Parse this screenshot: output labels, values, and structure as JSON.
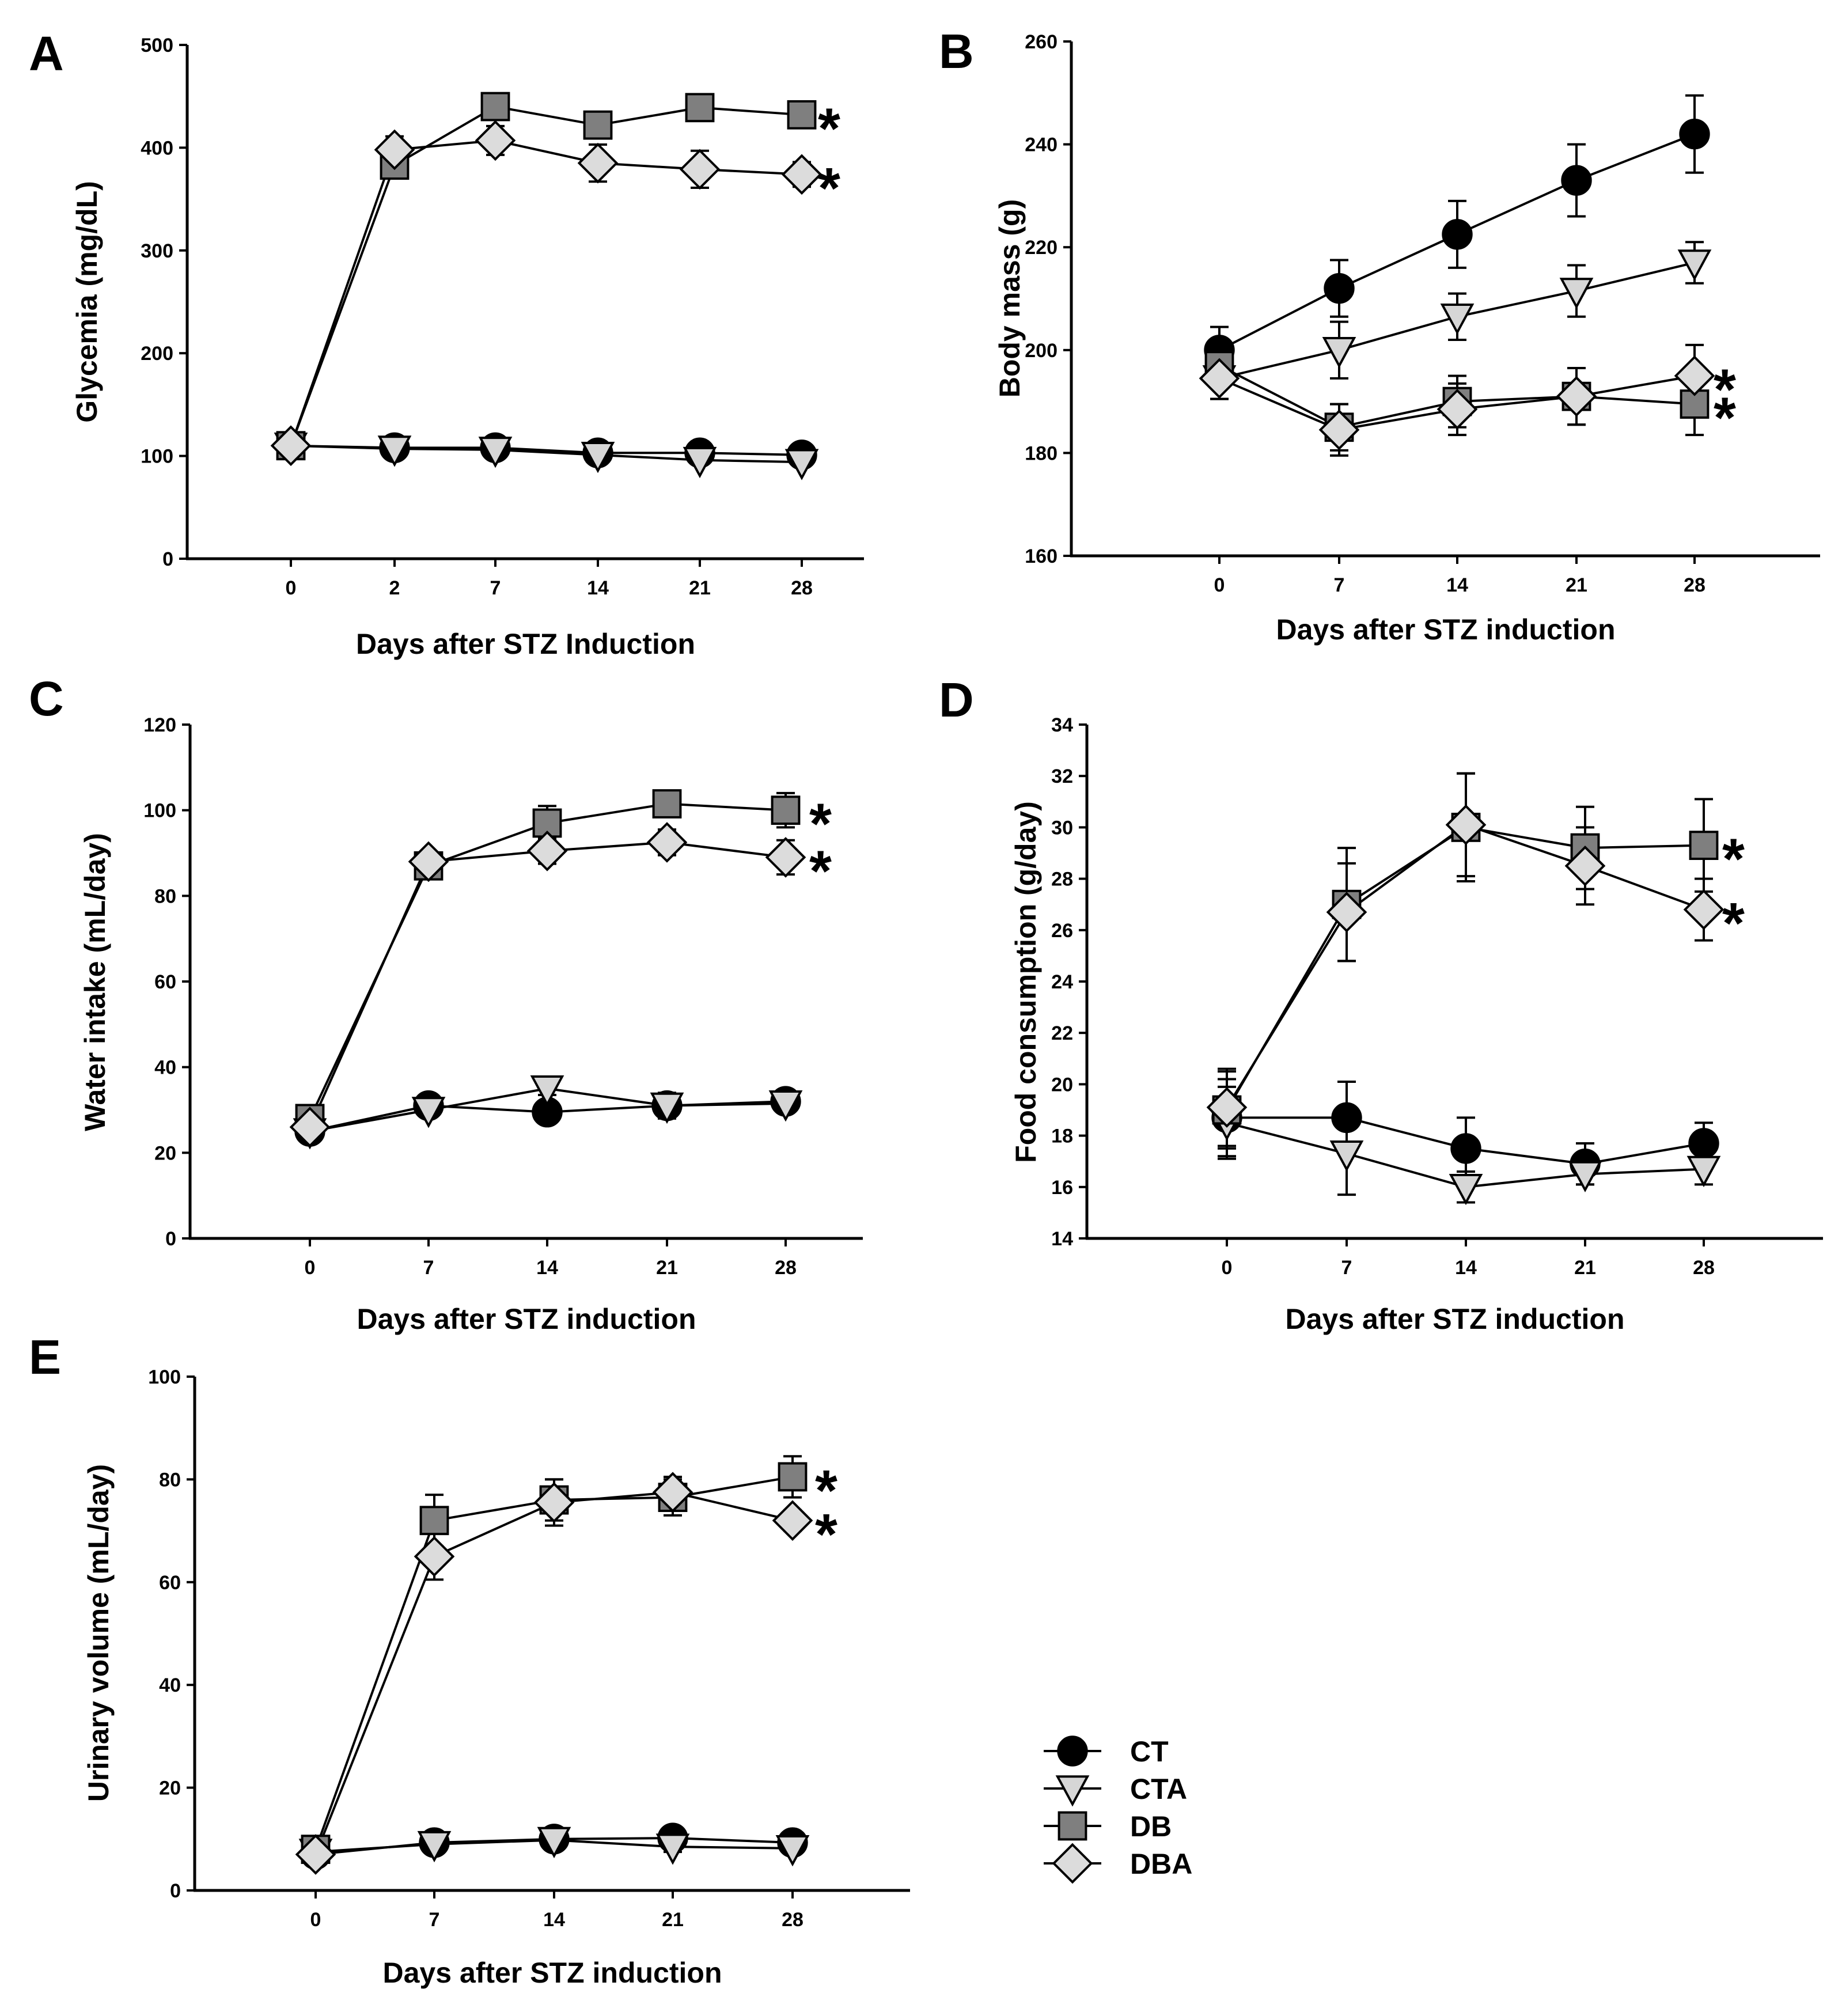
{
  "legend": [
    {
      "key": "CT",
      "label": "CT"
    },
    {
      "key": "CTA",
      "label": "CTA"
    },
    {
      "key": "DB",
      "label": "DB"
    },
    {
      "key": "DBA",
      "label": "DBA"
    }
  ],
  "series_style": {
    "CT": {
      "marker": "circle",
      "fill": "#000000"
    },
    "CTA": {
      "marker": "triangle",
      "fill": "#d6d6d6"
    },
    "DB": {
      "marker": "square",
      "fill": "#7f7f7f"
    },
    "DBA": {
      "marker": "diamond",
      "fill": "#dcdcdc"
    }
  },
  "chart_data": [
    {
      "panel": "A",
      "type": "line",
      "ylabel": "Glycemia (mg/dL)",
      "xlabel": "Days after STZ Induction",
      "categories": [
        "0",
        "2",
        "7",
        "14",
        "21",
        "28"
      ],
      "ylim": [
        0,
        500
      ],
      "yticks": [
        0,
        100,
        200,
        300,
        400,
        500
      ],
      "series": [
        {
          "name": "CT",
          "values": [
            110,
            108,
            108,
            103,
            103,
            101
          ],
          "err": [
            4,
            4,
            4,
            4,
            4,
            4
          ]
        },
        {
          "name": "CTA",
          "values": [
            110,
            107,
            106,
            101,
            96,
            94
          ],
          "err": [
            4,
            4,
            4,
            4,
            4,
            4
          ]
        },
        {
          "name": "DB",
          "values": [
            110,
            383,
            440,
            422,
            439,
            432
          ],
          "err": [
            4,
            10,
            6,
            9,
            6,
            10
          ]
        },
        {
          "name": "DBA",
          "values": [
            110,
            398,
            407,
            385,
            379,
            374
          ],
          "err": [
            4,
            13,
            14,
            18,
            18,
            12
          ]
        }
      ],
      "significance": [
        "*",
        "*"
      ]
    },
    {
      "panel": "B",
      "type": "line",
      "ylabel": "Body mass (g)",
      "xlabel": "Days after STZ induction",
      "categories": [
        "0",
        "7",
        "14",
        "21",
        "28"
      ],
      "ylim": [
        160,
        260
      ],
      "yticks": [
        160,
        180,
        200,
        220,
        240,
        260
      ],
      "series": [
        {
          "name": "CT",
          "values": [
            200,
            212,
            222.5,
            233,
            242
          ],
          "err": [
            4.5,
            5.5,
            6.5,
            7,
            7.5
          ]
        },
        {
          "name": "CTA",
          "values": [
            194.5,
            200,
            206.5,
            211.5,
            217
          ],
          "err": [
            4,
            5.5,
            4.5,
            5,
            4
          ]
        },
        {
          "name": "DB",
          "values": [
            197,
            185,
            190,
            191,
            189.5
          ],
          "err": [
            3.5,
            4.5,
            5,
            5.5,
            6
          ]
        },
        {
          "name": "DBA",
          "values": [
            194.5,
            184.5,
            188.5,
            191,
            195
          ],
          "err": [
            4,
            5,
            5,
            5.5,
            6
          ]
        }
      ],
      "significance": [
        "*",
        "*"
      ]
    },
    {
      "panel": "C",
      "type": "line",
      "ylabel": "Water intake (mL/day)",
      "xlabel": "Days after STZ induction",
      "categories": [
        "0",
        "7",
        "14",
        "21",
        "28"
      ],
      "ylim": [
        0,
        120
      ],
      "yticks": [
        0,
        20,
        40,
        60,
        80,
        100,
        120
      ],
      "series": [
        {
          "name": "CT",
          "values": [
            25,
            31,
            29.5,
            31,
            32
          ],
          "err": [
            1,
            1,
            1,
            1,
            1
          ]
        },
        {
          "name": "CTA",
          "values": [
            25,
            30,
            35,
            31,
            31.5
          ],
          "err": [
            1,
            1,
            1.5,
            3,
            1
          ]
        },
        {
          "name": "DB",
          "values": [
            28,
            87,
            97,
            101.5,
            100
          ],
          "err": [
            1.5,
            2,
            4,
            3,
            4
          ]
        },
        {
          "name": "DBA",
          "values": [
            26,
            88,
            90.5,
            92.5,
            89
          ],
          "err": [
            1.5,
            2,
            3,
            3,
            4
          ]
        }
      ],
      "significance": [
        "*",
        "*"
      ]
    },
    {
      "panel": "D",
      "type": "line",
      "ylabel": "Food consumption (g/day)",
      "xlabel": "Days after STZ induction",
      "categories": [
        "0",
        "7",
        "14",
        "21",
        "28"
      ],
      "ylim": [
        14,
        34
      ],
      "yticks": [
        14,
        16,
        18,
        20,
        22,
        24,
        26,
        28,
        30,
        32,
        34
      ],
      "series": [
        {
          "name": "CT",
          "values": [
            18.7,
            18.7,
            17.5,
            16.9,
            17.7
          ],
          "err": [
            1.5,
            1.4,
            1.2,
            0.8,
            0.8
          ]
        },
        {
          "name": "CTA",
          "values": [
            18.5,
            17.3,
            16.0,
            16.5,
            16.7
          ],
          "err": [
            1.4,
            1.6,
            0.6,
            0.4,
            0.6
          ]
        },
        {
          "name": "DB",
          "values": [
            19.0,
            27.0,
            30.0,
            29.2,
            29.3
          ],
          "err": [
            1.5,
            2.2,
            2.1,
            1.6,
            1.8
          ]
        },
        {
          "name": "DBA",
          "values": [
            19.1,
            26.7,
            30.1,
            28.5,
            26.8
          ],
          "err": [
            1.5,
            1.9,
            2.0,
            1.5,
            1.2
          ]
        }
      ],
      "significance": [
        "*",
        "*"
      ]
    },
    {
      "panel": "E",
      "type": "line",
      "ylabel": "Urinary volume (mL/day)",
      "xlabel": "Days after STZ induction",
      "categories": [
        "0",
        "7",
        "14",
        "21",
        "28"
      ],
      "ylim": [
        0,
        100
      ],
      "yticks": [
        0,
        20,
        40,
        60,
        80,
        100
      ],
      "series": [
        {
          "name": "CT",
          "values": [
            7,
            9.3,
            10,
            10.2,
            9.3
          ],
          "err": [
            1,
            1,
            1,
            1,
            1
          ]
        },
        {
          "name": "CTA",
          "values": [
            7.5,
            9.0,
            9.8,
            8.5,
            8.2
          ],
          "err": [
            1,
            1,
            1,
            1,
            1
          ]
        },
        {
          "name": "DB",
          "values": [
            8,
            72,
            76,
            76.5,
            80.5
          ],
          "err": [
            1,
            5,
            4,
            3.5,
            4
          ]
        },
        {
          "name": "DBA",
          "values": [
            7,
            65,
            75.5,
            77.5,
            72
          ],
          "err": [
            1,
            4.5,
            4.5,
            3,
            2
          ]
        }
      ],
      "significance": [
        "*",
        "*"
      ]
    }
  ]
}
